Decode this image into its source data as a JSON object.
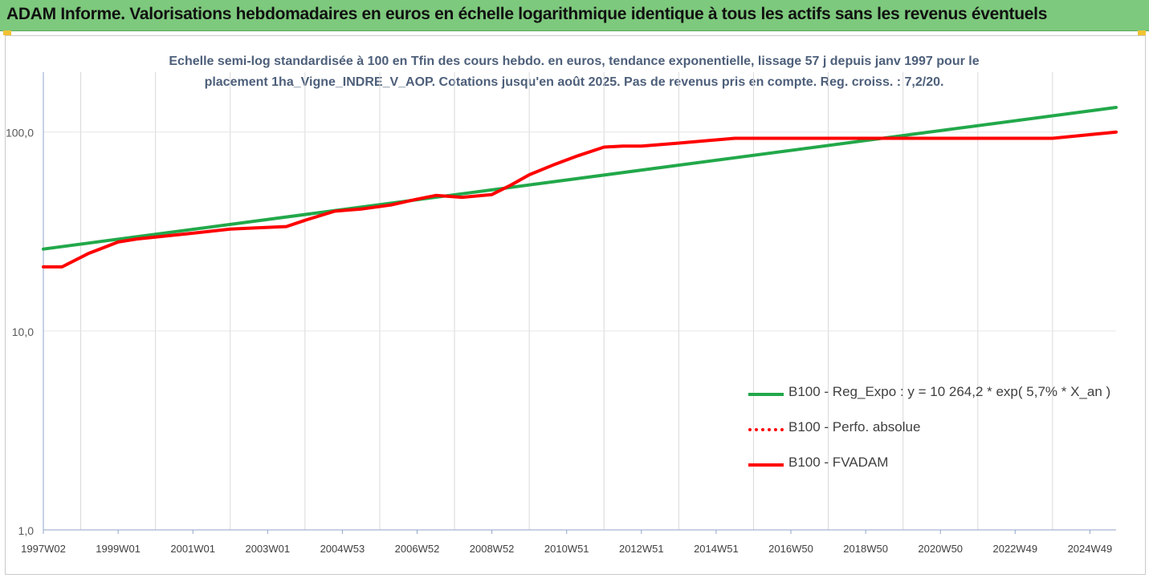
{
  "header": {
    "title": "ADAM Informe. Valorisations hebdomadaires en euros en échelle logarithmique identique à tous les actifs sans les revenus éventuels"
  },
  "colors": {
    "banner": "#7dc97d",
    "accent": "#f2c233"
  },
  "chart_data": {
    "type": "line",
    "title_line1": "Echelle semi-log standardisée à 100 en Tfin des cours hebdo. en euros, tendance exponentielle, lissage 57 j depuis janv 1997 pour le",
    "title_line2": "placement 1ha_Vigne_INDRE_V_AOP. Cotations jusqu'en août 2025.  Pas de revenus pris en compte. Reg. croiss. : 7,2/20.",
    "xlabel": "",
    "ylabel": "",
    "y_scale": "log",
    "ylim": [
      1,
      200
    ],
    "xlim": [
      1997.0,
      2025.7
    ],
    "y_ticks": [
      {
        "value": 1,
        "label": "1,0"
      },
      {
        "value": 10,
        "label": "10,0"
      },
      {
        "value": 100,
        "label": "100,0"
      }
    ],
    "x_ticks": [
      {
        "value": 1997.0,
        "label": "1997W02"
      },
      {
        "value": 1999.0,
        "label": "1999W01"
      },
      {
        "value": 2001.0,
        "label": "2001W01"
      },
      {
        "value": 2003.0,
        "label": "2003W01"
      },
      {
        "value": 2005.0,
        "label": "2004W53"
      },
      {
        "value": 2007.0,
        "label": "2006W52"
      },
      {
        "value": 2009.0,
        "label": "2008W52"
      },
      {
        "value": 2011.0,
        "label": "2010W51"
      },
      {
        "value": 2013.0,
        "label": "2012W51"
      },
      {
        "value": 2015.0,
        "label": "2014W51"
      },
      {
        "value": 2017.0,
        "label": "2016W50"
      },
      {
        "value": 2019.0,
        "label": "2018W50"
      },
      {
        "value": 2021.0,
        "label": "2020W50"
      },
      {
        "value": 2023.0,
        "label": "2022W49"
      },
      {
        "value": 2025.0,
        "label": "2024W49"
      }
    ],
    "grid": "vertical",
    "legend_position": "bottom-right",
    "series": [
      {
        "name": "B100 - Reg_Expo : y = 10 264,2 * exp( 5,7% *  X_an )",
        "color": "#22a84a",
        "style": "solid",
        "x": [
          1997.0,
          2025.7
        ],
        "y": [
          25.8,
          133
        ]
      },
      {
        "name": "B100 - Perfo. absolue",
        "color": "#ff0000",
        "style": "dotted",
        "x": [],
        "y": []
      },
      {
        "name": "B100 - FVADAM",
        "color": "#ff0000",
        "style": "solid",
        "x": [
          1997.0,
          1997.5,
          1998.2,
          1999.0,
          1999.5,
          2001.0,
          2002.0,
          2002.7,
          2003.5,
          2004.0,
          2004.8,
          2005.5,
          2006.3,
          2007.0,
          2007.5,
          2008.2,
          2009.0,
          2009.5,
          2010.0,
          2010.7,
          2011.3,
          2012.0,
          2012.5,
          2013.0,
          2014.0,
          2015.5,
          2019.5,
          2024.0,
          2025.7
        ],
        "y": [
          21,
          21,
          24.5,
          28,
          29,
          31,
          32.5,
          33,
          33.5,
          36,
          40,
          41,
          43,
          46,
          48,
          47,
          48.5,
          54,
          61,
          69,
          76,
          84,
          85,
          85,
          88,
          93,
          93,
          93,
          100
        ]
      }
    ]
  }
}
